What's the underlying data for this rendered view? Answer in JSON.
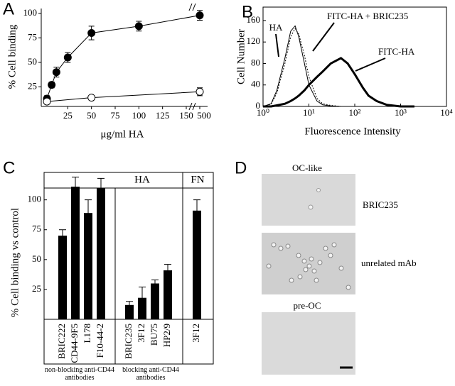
{
  "chart_data": [
    {
      "type": "line",
      "label": "A",
      "ylabel": "% Cell binding",
      "xlabel": "μg/ml HA",
      "xlim": [
        0,
        500
      ],
      "ylim": [
        5,
        105
      ],
      "xticks": [
        25,
        50,
        75,
        100,
        125,
        150,
        500
      ],
      "yticks": [
        25,
        50,
        75,
        100
      ],
      "axis_break": true,
      "series": [
        {
          "marker": "filled",
          "color": "#000000",
          "x": [
            3,
            8,
            13,
            25,
            50,
            100,
            500
          ],
          "values": [
            13,
            27,
            40,
            55,
            80,
            87,
            98
          ],
          "errors": [
            3,
            3,
            5,
            5,
            7,
            5,
            5
          ]
        },
        {
          "marker": "open",
          "color": "#000000",
          "x": [
            3,
            50,
            500
          ],
          "values": [
            10,
            14,
            20
          ],
          "errors": [
            2,
            2,
            4
          ]
        }
      ]
    },
    {
      "type": "histogram-line",
      "label": "B",
      "ylabel": "Cell Number",
      "xlabel": "Fluorescence Intensity",
      "xscale": "log",
      "xlim": [
        1,
        10000
      ],
      "ylim": [
        0,
        185
      ],
      "xticks": [
        {
          "value": 1,
          "label": "10⁰"
        },
        {
          "value": 10,
          "label": "10¹"
        },
        {
          "value": 100,
          "label": "10²"
        },
        {
          "value": 1000,
          "label": "10³"
        },
        {
          "value": 10000,
          "label": "10⁴"
        }
      ],
      "yticks": [
        0,
        40,
        80,
        120,
        160
      ],
      "x": [
        1,
        1.5,
        2,
        3,
        4,
        5,
        6,
        8,
        10,
        15,
        20,
        30,
        50,
        70,
        100,
        150,
        200,
        300,
        500,
        1000,
        2000
      ],
      "series": [
        {
          "name": "HA",
          "color": "#000000",
          "width": 1,
          "dash": "none",
          "values": [
            0,
            5,
            30,
            90,
            140,
            150,
            130,
            80,
            40,
            10,
            3,
            1,
            0,
            0,
            0,
            0,
            0,
            0,
            0,
            0,
            0
          ]
        },
        {
          "name": "FITC-HA + BRIC235",
          "color": "#000000",
          "width": 1,
          "dash": "2 2",
          "values": [
            0,
            4,
            25,
            80,
            130,
            145,
            135,
            95,
            55,
            15,
            5,
            2,
            0,
            0,
            0,
            0,
            0,
            0,
            0,
            0,
            0
          ]
        },
        {
          "name": "FITC-HA",
          "color": "#000000",
          "width": 3,
          "dash": "none",
          "values": [
            0,
            0,
            2,
            5,
            10,
            15,
            20,
            30,
            40,
            55,
            65,
            80,
            90,
            80,
            60,
            35,
            20,
            10,
            3,
            0,
            0
          ]
        }
      ]
    },
    {
      "type": "bar",
      "label": "C",
      "ylabel": "% Cell binding vs control",
      "color": "#000000",
      "ylim": [
        0,
        120
      ],
      "yticks": [
        25,
        50,
        75,
        100
      ],
      "categories": [
        "BRIC222",
        "CD44-9F5",
        "L178",
        "F10-44-2",
        "BRIC235",
        "3F12",
        "BU75",
        "HP2/9",
        "3F12"
      ],
      "values": [
        70,
        111,
        89,
        110,
        12,
        18,
        30,
        41,
        91
      ],
      "errors": [
        5,
        8,
        11,
        8,
        3,
        9,
        3,
        5,
        9
      ],
      "group_labels": [
        "HA",
        "FN"
      ],
      "footnotes": [
        "non-blocking anti-CD44 antibodies",
        "blocking  anti-CD44 antibodies"
      ]
    }
  ],
  "image_panel": {
    "label": "D",
    "title": "OC-like",
    "captions": [
      "BRIC235",
      "unrelated mAb"
    ],
    "subtitle": "pre-OC"
  }
}
